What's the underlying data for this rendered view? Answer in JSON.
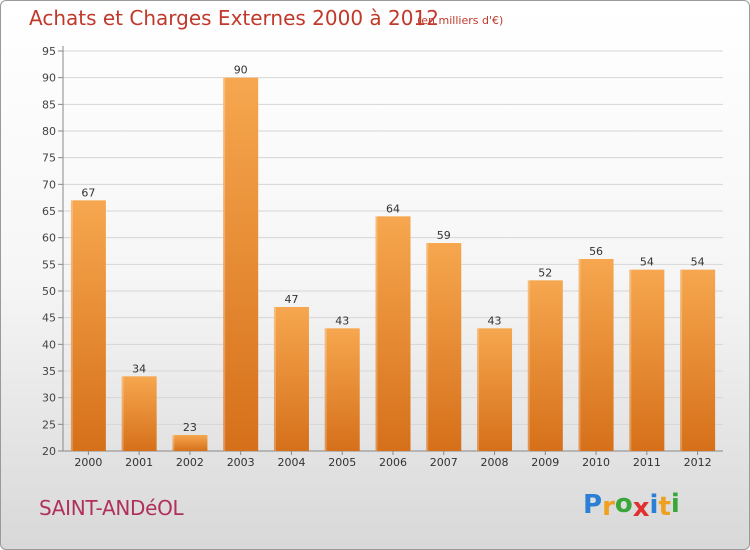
{
  "header": {
    "title": "Achats et Charges Externes 2000 à 2012",
    "subtitle": "(en milliers d'€)"
  },
  "footer": {
    "commune": "SAINT-ANDéOL",
    "logo_letters": [
      {
        "char": "P",
        "color": "#2b7fd4"
      },
      {
        "char": "r",
        "color": "#f0a020"
      },
      {
        "char": "o",
        "color": "#3aa63a"
      },
      {
        "char": "x",
        "color": "#e03030"
      },
      {
        "char": "i",
        "color": "#2b7fd4"
      },
      {
        "char": "t",
        "color": "#f0a020"
      },
      {
        "char": "i",
        "color": "#3aa63a"
      }
    ]
  },
  "colors": {
    "bar_top": "#f6a74f",
    "bar_bottom": "#d6701a",
    "axis": "#888888",
    "grid": "#d6d6d6",
    "title": "#c0392b"
  },
  "chart_data": {
    "type": "bar",
    "title": "Achats et Charges Externes 2000 à 2012",
    "subtitle": "(en milliers d'€)",
    "xlabel": "",
    "ylabel": "",
    "categories": [
      "2000",
      "2001",
      "2002",
      "2003",
      "2004",
      "2005",
      "2006",
      "2007",
      "2008",
      "2009",
      "2010",
      "2011",
      "2012"
    ],
    "values": [
      67,
      34,
      23,
      90,
      47,
      43,
      64,
      59,
      43,
      52,
      56,
      54,
      54
    ],
    "ylim": [
      20,
      95
    ],
    "yticks": [
      20,
      25,
      30,
      35,
      40,
      45,
      50,
      55,
      60,
      65,
      70,
      75,
      80,
      85,
      90,
      95
    ],
    "grid": true,
    "legend": "none",
    "data_labels": true
  }
}
